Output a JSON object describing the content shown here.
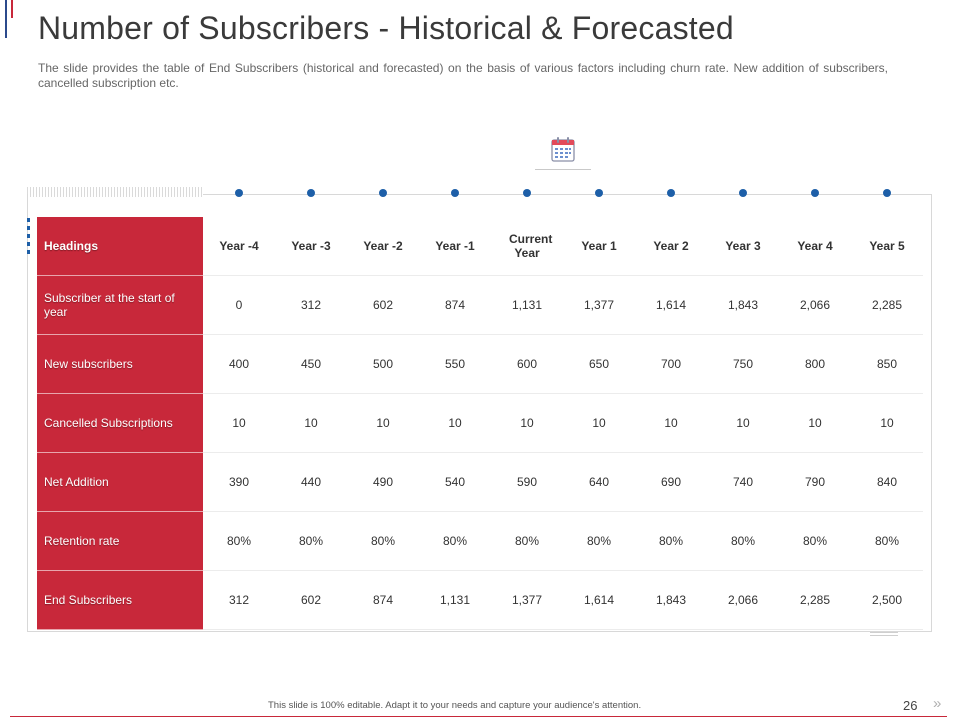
{
  "slide": {
    "title": "Number of Subscribers - Historical & Forecasted",
    "subtitle": "The slide provides the table of End Subscribers (historical and forecasted) on the basis of various factors including churn rate. New addition of subscribers, cancelled subscription etc.",
    "icon": "calendar-icon",
    "colors": {
      "accent_red": "#c8283a",
      "accent_blue": "#1d5fa8"
    }
  },
  "table": {
    "columns": [
      "Headings",
      "Year -4",
      "Year -3",
      "Year -2",
      "Year -1",
      "Current Year",
      "Year 1",
      "Year 2",
      "Year 3",
      "Year 4",
      "Year 5"
    ],
    "rows": [
      {
        "label": "Subscriber at the start of year",
        "values": [
          "0",
          "312",
          "602",
          "874",
          "1,131",
          "1,377",
          "1,614",
          "1,843",
          "2,066",
          "2,285"
        ]
      },
      {
        "label": "New subscribers",
        "values": [
          "400",
          "450",
          "500",
          "550",
          "600",
          "650",
          "700",
          "750",
          "800",
          "850"
        ]
      },
      {
        "label": "Cancelled Subscriptions",
        "values": [
          "10",
          "10",
          "10",
          "10",
          "10",
          "10",
          "10",
          "10",
          "10",
          "10"
        ]
      },
      {
        "label": "Net Addition",
        "values": [
          "390",
          "440",
          "490",
          "540",
          "590",
          "640",
          "690",
          "740",
          "790",
          "840"
        ]
      },
      {
        "label": "Retention rate",
        "values": [
          "80%",
          "80%",
          "80%",
          "80%",
          "80%",
          "80%",
          "80%",
          "80%",
          "80%",
          "80%"
        ]
      },
      {
        "label": "End Subscribers",
        "values": [
          "312",
          "602",
          "874",
          "1,131",
          "1,377",
          "1,614",
          "1,843",
          "2,066",
          "2,285",
          "2,500"
        ]
      }
    ]
  },
  "footer": {
    "note": "This slide is 100% editable. Adapt it to your needs and capture your audience's attention.",
    "page_number": "26",
    "next_glyph": "»"
  }
}
